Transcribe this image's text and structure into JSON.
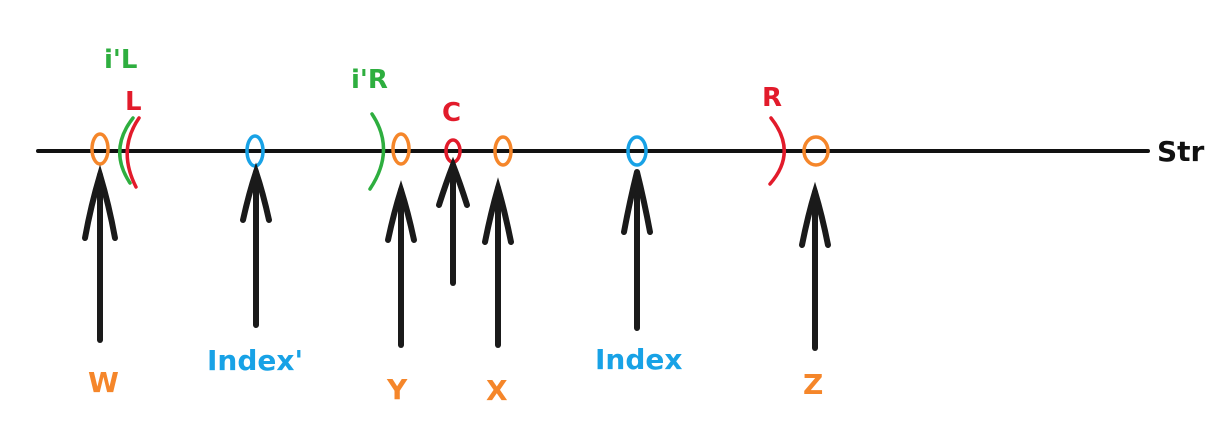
{
  "axis": {
    "label": "Str"
  },
  "colors": {
    "axis": "#111111",
    "orange": "#f5862a",
    "blue": "#18a2e6",
    "red": "#e21b2b",
    "green": "#2eae3f",
    "arrow": "#1a1a1a"
  },
  "labels": {
    "w": "W",
    "index_prime": "Index'",
    "y": "Y",
    "x": "X",
    "index": "Index",
    "z": "Z",
    "c": "C",
    "l": "L",
    "r": "R",
    "i_prime_l": "i'L",
    "i_prime_r": "i'R"
  },
  "markers": [
    {
      "id": "w",
      "color": "orange"
    },
    {
      "id": "index_prime",
      "color": "blue"
    },
    {
      "id": "y",
      "color": "orange"
    },
    {
      "id": "c",
      "color": "red"
    },
    {
      "id": "x",
      "color": "orange"
    },
    {
      "id": "index",
      "color": "blue"
    },
    {
      "id": "z",
      "color": "orange"
    }
  ],
  "brackets": [
    {
      "id": "i_prime_l",
      "color": "green",
      "side": "left"
    },
    {
      "id": "l",
      "color": "red",
      "side": "left"
    },
    {
      "id": "i_prime_r",
      "color": "green",
      "side": "right"
    },
    {
      "id": "r",
      "color": "red",
      "side": "right"
    }
  ]
}
